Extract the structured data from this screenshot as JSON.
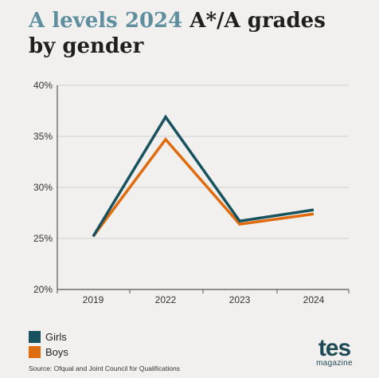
{
  "header": {
    "title_accent": "A levels 2024",
    "title_rest": " A*/A grades",
    "title_line2": "by gender"
  },
  "chart_data": {
    "type": "line",
    "x": [
      "2019",
      "2022",
      "2023",
      "2024"
    ],
    "series": [
      {
        "name": "Girls",
        "values": [
          25.2,
          36.9,
          26.7,
          27.8
        ],
        "color": "#17525e"
      },
      {
        "name": "Boys",
        "values": [
          25.2,
          34.7,
          26.4,
          27.4
        ],
        "color": "#e06c10"
      }
    ],
    "ylim": [
      20,
      40
    ],
    "yticks": [
      "20%",
      "25%",
      "30%",
      "35%",
      "40%"
    ],
    "ytick_values": [
      20,
      25,
      30,
      35,
      40
    ],
    "grid": true,
    "legend_position": "bottom-left"
  },
  "source": "Source: Ofqual and Joint Council for Qualifications",
  "logo": {
    "main": "tes",
    "sub": "magazine"
  }
}
